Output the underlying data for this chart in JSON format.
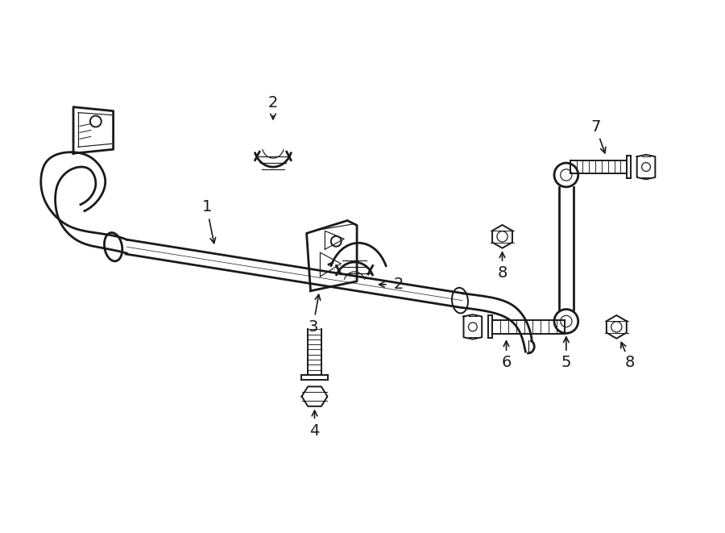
{
  "background_color": "#ffffff",
  "line_color": "#1a1a1a",
  "fig_width": 9.0,
  "fig_height": 6.61,
  "dpi": 100,
  "lw_thick": 2.0,
  "lw_med": 1.4,
  "lw_thin": 0.85
}
